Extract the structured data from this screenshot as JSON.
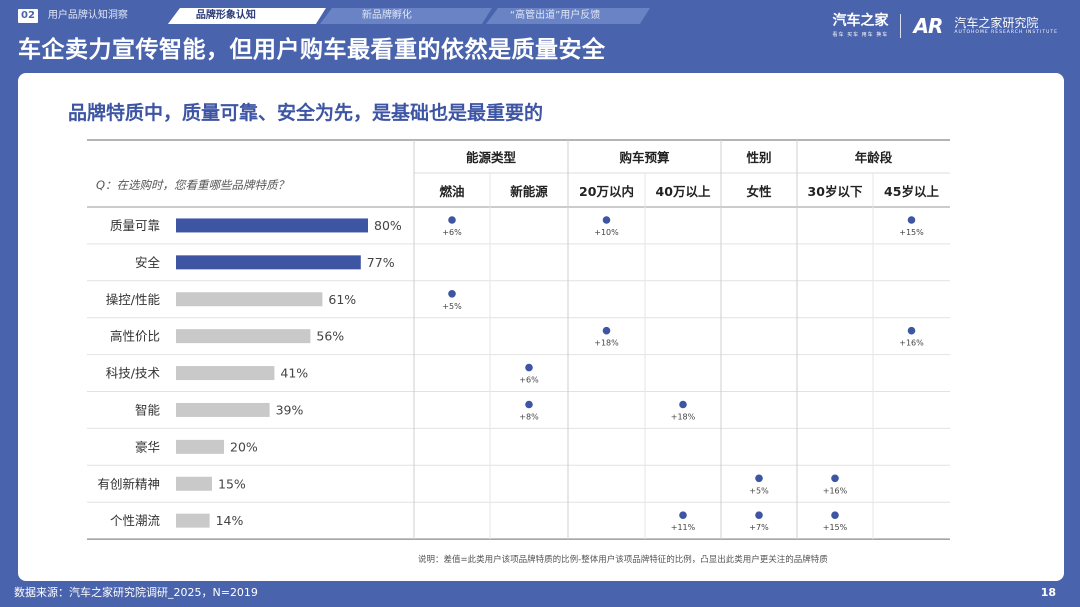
{
  "header": {
    "tab_number": "02",
    "tabs": [
      "用户品牌认知洞察",
      "品牌形象认知",
      "新品牌孵化",
      "“高管出道”用户反馈"
    ],
    "title": "车企卖力宣传智能，但用户购车最看重的依然是质量安全",
    "logo_autohome": "汽车之家",
    "logo_autohome_sub": "看车 买车 用车 换车",
    "logo_ar": "AR",
    "logo_institute": "汽车之家研究院",
    "logo_institute_sub": "AUTOHOME RESEARCH INSTITUTE"
  },
  "subtitle": "品牌特质中，质量可靠、安全为先，是基础也是最重要的",
  "question": "Q：在选购时，您看重哪些品牌特质？",
  "footnote": "说明：差值=此类用户该项品牌特质的比例-整体用户该项品牌特征的比例，凸显出此类用户更关注的品牌特质",
  "source": "数据来源：汽车之家研究院调研_2025，N=2019",
  "page_number": "18",
  "colors": {
    "highlight_bar": "#3d55a3",
    "other_bar": "#c9c9c9",
    "dot": "#3d55a3",
    "background": "#4a63ad"
  },
  "chart_data": {
    "type": "bar",
    "orientation": "horizontal",
    "categories": [
      "质量可靠",
      "安全",
      "操控/性能",
      "高性价比",
      "科技/技术",
      "智能",
      "豪华",
      "有创新精神",
      "个性潮流"
    ],
    "values": [
      80,
      77,
      61,
      56,
      41,
      39,
      20,
      15,
      14
    ],
    "value_labels": [
      "80%",
      "77%",
      "61%",
      "56%",
      "41%",
      "39%",
      "20%",
      "15%",
      "14%"
    ],
    "highlighted": [
      "质量可靠",
      "安全"
    ],
    "xlim": [
      0,
      100
    ],
    "segment_groups": [
      {
        "label": "能源类型",
        "columns": [
          "燃油",
          "新能源"
        ]
      },
      {
        "label": "购车预算",
        "columns": [
          "20万以内",
          "40万以上"
        ]
      },
      {
        "label": "性别",
        "columns": [
          "女性"
        ]
      },
      {
        "label": "年龄段",
        "columns": [
          "30岁以下",
          "45岁以上"
        ]
      }
    ],
    "columns": [
      "燃油",
      "新能源",
      "20万以内",
      "40万以上",
      "女性",
      "30岁以下",
      "45岁以上"
    ],
    "differences": [
      {
        "category": "质量可靠",
        "column": "燃油",
        "label": "+6%"
      },
      {
        "category": "质量可靠",
        "column": "20万以内",
        "label": "+10%"
      },
      {
        "category": "质量可靠",
        "column": "45岁以上",
        "label": "+15%"
      },
      {
        "category": "操控/性能",
        "column": "燃油",
        "label": "+5%"
      },
      {
        "category": "高性价比",
        "column": "20万以内",
        "label": "+18%"
      },
      {
        "category": "高性价比",
        "column": "45岁以上",
        "label": "+16%"
      },
      {
        "category": "科技/技术",
        "column": "新能源",
        "label": "+6%"
      },
      {
        "category": "智能",
        "column": "新能源",
        "label": "+8%"
      },
      {
        "category": "智能",
        "column": "40万以上",
        "label": "+18%"
      },
      {
        "category": "有创新精神",
        "column": "女性",
        "label": "+5%"
      },
      {
        "category": "有创新精神",
        "column": "30岁以下",
        "label": "+16%"
      },
      {
        "category": "个性潮流",
        "column": "40万以上",
        "label": "+11%"
      },
      {
        "category": "个性潮流",
        "column": "女性",
        "label": "+7%"
      },
      {
        "category": "个性潮流",
        "column": "30岁以下",
        "label": "+15%"
      }
    ]
  }
}
